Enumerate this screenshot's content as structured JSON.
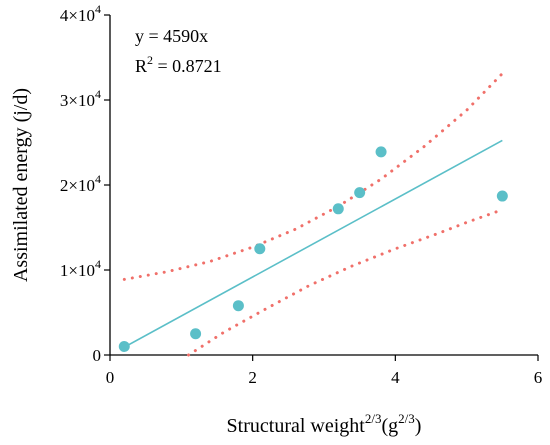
{
  "chart_data": {
    "type": "scatter",
    "xlim": [
      0,
      6
    ],
    "ylim": [
      0,
      40000
    ],
    "x_ticks": [
      {
        "value": 0,
        "label": "0"
      },
      {
        "value": 2,
        "label": "2"
      },
      {
        "value": 4,
        "label": "4"
      },
      {
        "value": 6,
        "label": "6"
      }
    ],
    "y_ticks": [
      {
        "value": 0,
        "label": "0"
      },
      {
        "value": 10000,
        "label": "1×10",
        "exp": "4"
      },
      {
        "value": 20000,
        "label": "2×10",
        "exp": "4"
      },
      {
        "value": 30000,
        "label": "3×10",
        "exp": "4"
      },
      {
        "value": 40000,
        "label": "4×10",
        "exp": "4"
      }
    ],
    "xlabel": {
      "main": "Structural weight",
      "sup1": "2/3",
      "paren_open": "(g",
      "sup2": "2/3",
      "paren_close": ")"
    },
    "ylabel": "Assimilated energy (j/d)",
    "grid": false,
    "annotations": {
      "equation": "y = 4590x",
      "r2_prefix": "R",
      "r2_sup": "2",
      "r2_value": " = 0.8721"
    },
    "points": [
      {
        "x": 0.2,
        "y": 1000
      },
      {
        "x": 1.2,
        "y": 2500
      },
      {
        "x": 1.8,
        "y": 5800
      },
      {
        "x": 2.1,
        "y": 12500
      },
      {
        "x": 3.2,
        "y": 17200
      },
      {
        "x": 3.5,
        "y": 19100
      },
      {
        "x": 3.8,
        "y": 23900
      },
      {
        "x": 5.5,
        "y": 18700
      }
    ],
    "fit_line": {
      "slope": 4590,
      "x_range": [
        0.2,
        5.5
      ]
    },
    "upper_band": [
      {
        "x": 0.2,
        "y": 8900
      },
      {
        "x": 0.8,
        "y": 9800
      },
      {
        "x": 1.4,
        "y": 11000
      },
      {
        "x": 2.0,
        "y": 12700
      },
      {
        "x": 2.6,
        "y": 14800
      },
      {
        "x": 3.2,
        "y": 17500
      },
      {
        "x": 3.8,
        "y": 20700
      },
      {
        "x": 4.4,
        "y": 24500
      },
      {
        "x": 5.0,
        "y": 28800
      },
      {
        "x": 5.5,
        "y": 33100
      }
    ],
    "lower_band": [
      {
        "x": 1.1,
        "y": 0
      },
      {
        "x": 1.6,
        "y": 2700
      },
      {
        "x": 2.2,
        "y": 5500
      },
      {
        "x": 2.8,
        "y": 8200
      },
      {
        "x": 3.4,
        "y": 10500
      },
      {
        "x": 4.0,
        "y": 12500
      },
      {
        "x": 4.6,
        "y": 14300
      },
      {
        "x": 5.0,
        "y": 15600
      },
      {
        "x": 5.5,
        "y": 17100
      }
    ],
    "colors": {
      "points": "#5bbfc8",
      "fit_line": "#5bbfc8",
      "bands": "#f0706a",
      "axis": "#000000"
    }
  }
}
